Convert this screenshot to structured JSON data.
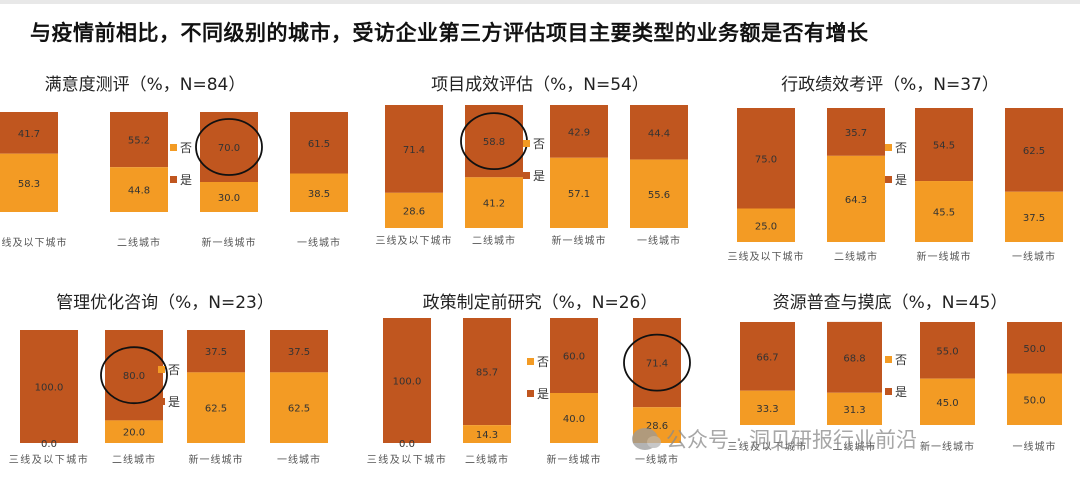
{
  "title": "与疫情前相比，不同级别的城市，受访企业第三方评估项目主要类型的业务额是否有增长",
  "watermark": "公众号 · 洞见研报行业前沿",
  "colors": {
    "yes": "#f39b24",
    "no": "#c0561f",
    "label": "#333333",
    "axis": "#555555"
  },
  "chart_data": [
    {
      "type": "bar",
      "stacked": true,
      "title": "满意度测评（%，N=84）",
      "categories": [
        "三线及以下城市",
        "二线城市",
        "新一线城市",
        "一线城市"
      ],
      "series": [
        {
          "name": "是",
          "values": [
            58.3,
            44.8,
            30.0,
            38.5
          ]
        },
        {
          "name": "否",
          "values": [
            41.7,
            55.2,
            70.0,
            61.5
          ]
        }
      ],
      "value_labels": {
        "是": [
          "58.3",
          "44.8",
          "30.0",
          "38.5"
        ],
        "否": [
          "41.7",
          "55.2",
          "70.0",
          "61.5"
        ]
      },
      "legend": [
        "否",
        "是"
      ],
      "legend_position": "between-bars-2-3",
      "highlight": {
        "category_index": 2,
        "series": "否"
      },
      "ylim": [
        0,
        100
      ]
    },
    {
      "type": "bar",
      "stacked": true,
      "title": "项目成效评估（%，N=54）",
      "categories": [
        "三线及以下城市",
        "二线城市",
        "新一线城市",
        "一线城市"
      ],
      "series": [
        {
          "name": "是",
          "values": [
            28.6,
            41.2,
            57.1,
            55.6
          ]
        },
        {
          "name": "否",
          "values": [
            71.4,
            58.8,
            42.9,
            44.4
          ]
        }
      ],
      "value_labels": {
        "是": [
          "28.6",
          "41.2",
          "57.1",
          "55.6"
        ],
        "否": [
          "71.4",
          "58.8",
          "42.9",
          "44.4"
        ]
      },
      "legend": [
        "否",
        "是"
      ],
      "legend_position": "between-bars-2-3",
      "highlight": {
        "category_index": 1,
        "series": "否"
      },
      "ylim": [
        0,
        100
      ]
    },
    {
      "type": "bar",
      "stacked": true,
      "title": "行政绩效考评（%，N=37）",
      "categories": [
        "三线及以下城市",
        "二线城市",
        "新一线城市",
        "一线城市"
      ],
      "series": [
        {
          "name": "是",
          "values": [
            25.0,
            64.3,
            45.5,
            37.5
          ]
        },
        {
          "name": "否",
          "values": [
            75.0,
            35.7,
            54.5,
            62.5
          ]
        }
      ],
      "value_labels": {
        "是": [
          "25.0",
          "64.3",
          "45.5",
          "37.5"
        ],
        "否": [
          "75.0",
          "35.7",
          "54.5",
          "62.5"
        ]
      },
      "legend": [
        "否",
        "是"
      ],
      "legend_position": "between-bars-2-3",
      "highlight": null,
      "ylim": [
        0,
        100
      ]
    },
    {
      "type": "bar",
      "stacked": true,
      "title": "管理优化咨询（%，N=23）",
      "categories": [
        "三线及以下城市",
        "二线城市",
        "新一线城市",
        "一线城市"
      ],
      "series": [
        {
          "name": "是",
          "values": [
            0.0,
            20.0,
            62.5,
            62.5
          ]
        },
        {
          "name": "否",
          "values": [
            100.0,
            80.0,
            37.5,
            37.5
          ]
        }
      ],
      "value_labels": {
        "是": [
          "0.0",
          "20.0",
          "62.5",
          "62.5"
        ],
        "否": [
          "100.0",
          "80.0",
          "37.5",
          "37.5"
        ]
      },
      "legend": [
        "否",
        "是"
      ],
      "legend_position": "between-bars-2-3",
      "highlight": {
        "category_index": 1,
        "series": "否"
      },
      "ylim": [
        0,
        100
      ]
    },
    {
      "type": "bar",
      "stacked": true,
      "title": "政策制定前研究（%，N=26）",
      "categories": [
        "三线及以下城市",
        "二线城市",
        "新一线城市",
        "一线城市"
      ],
      "series": [
        {
          "name": "是",
          "values": [
            0.0,
            14.3,
            40.0,
            28.6
          ]
        },
        {
          "name": "否",
          "values": [
            100.0,
            85.7,
            60.0,
            71.4
          ]
        }
      ],
      "value_labels": {
        "是": [
          "0.0",
          "14.3",
          "40.0",
          "28.6"
        ],
        "否": [
          "100.0",
          "85.7",
          "60.0",
          "71.4"
        ]
      },
      "legend": [
        "否",
        "是"
      ],
      "legend_position": "between-bars-2-3",
      "highlight": {
        "category_index": 3,
        "series": "否"
      },
      "ylim": [
        0,
        100
      ]
    },
    {
      "type": "bar",
      "stacked": true,
      "title": "资源普查与摸底（%，N=45）",
      "categories": [
        "三线及以下城市",
        "二线城市",
        "新一线城市",
        "一线城市"
      ],
      "series": [
        {
          "name": "是",
          "values": [
            33.3,
            31.3,
            45.0,
            50.0
          ]
        },
        {
          "name": "否",
          "values": [
            66.7,
            68.8,
            55.0,
            50.0
          ]
        }
      ],
      "value_labels": {
        "是": [
          "33.3",
          "31.3",
          "45.0",
          "50.0"
        ],
        "否": [
          "66.7",
          "68.8",
          "55.0",
          "50.0"
        ]
      },
      "legend": [
        "否",
        "是"
      ],
      "legend_position": "between-bars-2-3",
      "highlight": null,
      "ylim": [
        0,
        100
      ]
    }
  ]
}
